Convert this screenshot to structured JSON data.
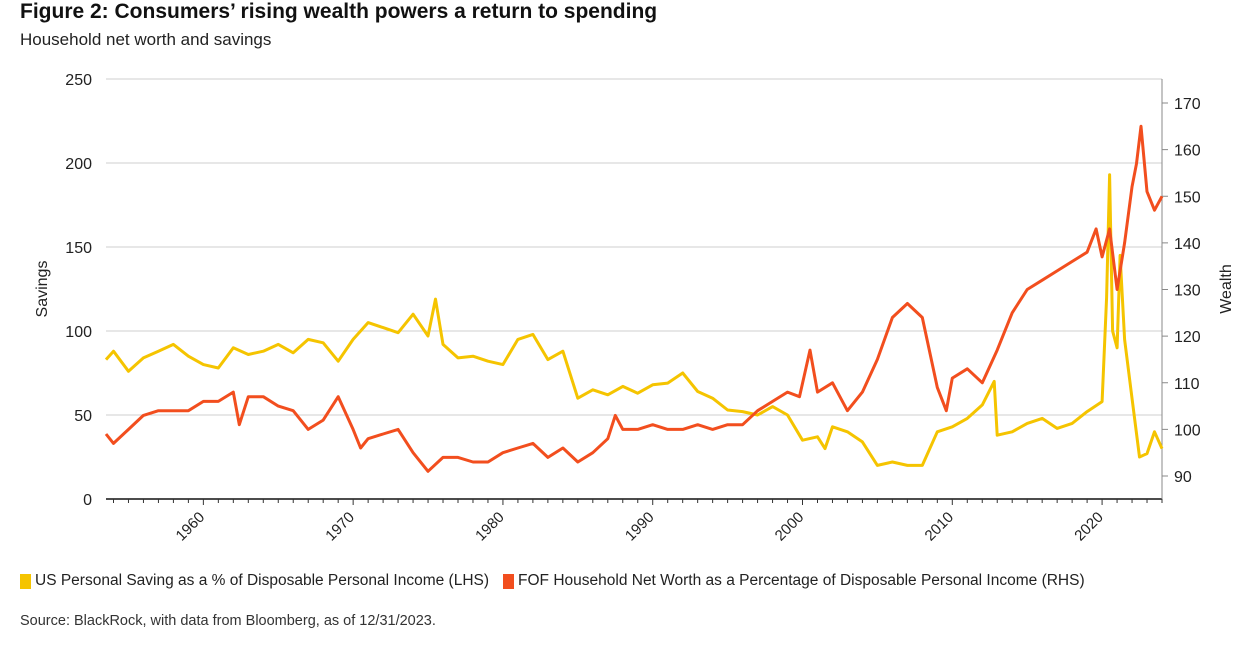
{
  "header": {
    "title": "Figure 2: Consumers’ rising wealth powers a return to spending",
    "subtitle": "Household net worth and savings"
  },
  "footer": {
    "source": "Source: BlackRock, with data from Bloomberg, as of 12/31/2023."
  },
  "chart_data": {
    "type": "line",
    "title": "Figure 2: Consumers’ rising wealth powers a return to spending",
    "subtitle": "Household net worth and savings",
    "ylabel": "Savings",
    "y2label": "Wealth",
    "xlim": [
      1953.5,
      2024
    ],
    "ylim": [
      0,
      250
    ],
    "y2lim": [
      85,
      175
    ],
    "x_ticks": [
      "1960",
      "1970",
      "1980",
      "1990",
      "2000",
      "2010",
      "2020"
    ],
    "y_ticks": [
      "0",
      "50",
      "100",
      "150",
      "200",
      "250"
    ],
    "y2_ticks": [
      "90",
      "100",
      "110",
      "120",
      "130",
      "140",
      "150",
      "160",
      "170"
    ],
    "grid": true,
    "legend_position": "bottom",
    "series": [
      {
        "name": "US Personal Saving as a % of Disposable Personal Income (LHS)",
        "axis": "left",
        "color": "#F5C400",
        "x": [
          1953.5,
          1954,
          1955,
          1956,
          1957,
          1958,
          1959,
          1960,
          1961,
          1962,
          1963,
          1964,
          1965,
          1966,
          1967,
          1968,
          1969,
          1970,
          1971,
          1972,
          1973,
          1974,
          1975,
          1975.5,
          1976,
          1977,
          1978,
          1979,
          1980,
          1981,
          1982,
          1983,
          1984,
          1985,
          1986,
          1987,
          1988,
          1989,
          1990,
          1991,
          1992,
          1993,
          1994,
          1995,
          1996,
          1997,
          1998,
          1999,
          2000,
          2001,
          2001.5,
          2002,
          2003,
          2004,
          2005,
          2006,
          2007,
          2008,
          2009,
          2010,
          2011,
          2012,
          2012.8,
          2013,
          2014,
          2015,
          2016,
          2017,
          2018,
          2019,
          2020,
          2020.3,
          2020.5,
          2020.7,
          2021,
          2021.2,
          2021.5,
          2022,
          2022.5,
          2023,
          2023.5,
          2024
        ],
        "y": [
          83,
          88,
          76,
          84,
          88,
          92,
          85,
          80,
          78,
          90,
          86,
          88,
          92,
          87,
          95,
          93,
          82,
          95,
          105,
          102,
          99,
          110,
          97,
          119,
          92,
          84,
          85,
          82,
          80,
          95,
          98,
          83,
          88,
          60,
          65,
          62,
          67,
          63,
          68,
          69,
          75,
          64,
          60,
          53,
          52,
          50,
          55,
          50,
          35,
          37,
          30,
          43,
          40,
          34,
          20,
          22,
          20,
          20,
          40,
          43,
          48,
          56,
          70,
          38,
          40,
          45,
          48,
          42,
          45,
          52,
          58,
          120,
          193,
          100,
          90,
          145,
          95,
          60,
          25,
          27,
          40,
          30
        ]
      },
      {
        "name": "FOF Household Net Worth as a Percentage of Disposable Personal Income (RHS)",
        "axis": "right",
        "color": "#F24E1E",
        "x": [
          1953.5,
          1954,
          1955,
          1956,
          1957,
          1958,
          1959,
          1960,
          1961,
          1962,
          1962.4,
          1963,
          1964,
          1965,
          1966,
          1967,
          1968,
          1969,
          1970,
          1970.5,
          1971,
          1972,
          1973,
          1974,
          1975,
          1976,
          1977,
          1978,
          1979,
          1980,
          1981,
          1982,
          1983,
          1984,
          1985,
          1986,
          1987,
          1987.5,
          1988,
          1989,
          1990,
          1991,
          1992,
          1993,
          1994,
          1995,
          1996,
          1997,
          1998,
          1999,
          1999.8,
          2000.5,
          2001,
          2002,
          2003,
          2004,
          2005,
          2006,
          2007,
          2008,
          2009,
          2009.6,
          2010,
          2011,
          2012,
          2013,
          2014,
          2015,
          2016,
          2017,
          2018,
          2019,
          2019.6,
          2020,
          2020.5,
          2021,
          2021.5,
          2022,
          2022.3,
          2022.6,
          2023,
          2023.5,
          2024
        ],
        "y": [
          99,
          97,
          100,
          103,
          104,
          104,
          104,
          106,
          106,
          108,
          101,
          107,
          107,
          105,
          104,
          100,
          102,
          107,
          100,
          96,
          98,
          99,
          100,
          95,
          91,
          94,
          94,
          93,
          93,
          95,
          96,
          97,
          94,
          96,
          93,
          95,
          98,
          103,
          100,
          100,
          101,
          100,
          100,
          101,
          100,
          101,
          101,
          104,
          106,
          108,
          107,
          117,
          108,
          110,
          104,
          108,
          115,
          124,
          127,
          124,
          109,
          104,
          111,
          113,
          110,
          117,
          125,
          130,
          132,
          134,
          136,
          138,
          143,
          137,
          143,
          130,
          140,
          152,
          157,
          165,
          151,
          147,
          150
        ]
      }
    ]
  },
  "legend": {
    "items": [
      {
        "label": "US Personal Saving as a % of Disposable Personal Income (LHS)",
        "color": "#F5C400"
      },
      {
        "label": "FOF Household Net Worth as a Percentage of Disposable Personal Income (RHS)",
        "color": "#F24E1E"
      }
    ]
  }
}
